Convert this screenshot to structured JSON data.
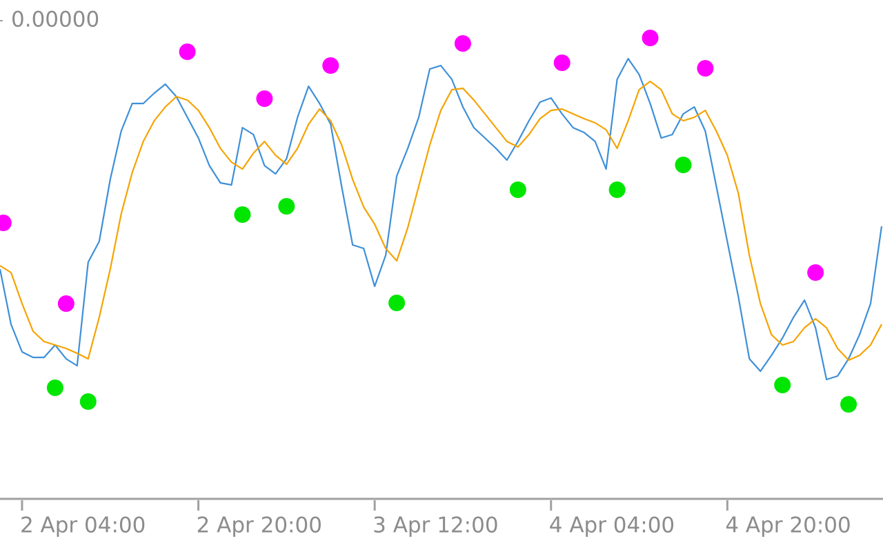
{
  "chart_data": {
    "type": "line",
    "xlim": [
      -2,
      78
    ],
    "xticks": [
      {
        "value": 0,
        "label": "2 Apr 04:00"
      },
      {
        "value": 16,
        "label": "2 Apr 20:00"
      },
      {
        "value": 32,
        "label": "3 Apr 12:00"
      },
      {
        "value": 48,
        "label": "4 Apr 04:00"
      },
      {
        "value": 64,
        "label": "4 Apr 20:00"
      }
    ],
    "ylim": [
      -692,
      0
    ],
    "yticks": [
      {
        "value": 0,
        "label": "0.00000"
      }
    ],
    "series": [
      {
        "type": "line",
        "color": "#3d8fd8",
        "x": [
          -2,
          -1,
          0,
          1,
          2,
          3,
          4,
          5,
          6,
          7,
          8,
          9,
          10,
          11,
          12,
          13,
          14,
          15,
          16,
          17,
          18,
          19,
          20,
          21,
          22,
          23,
          24,
          25,
          26,
          27,
          28,
          29,
          30,
          31,
          32,
          33,
          34,
          35,
          36,
          37,
          38,
          39,
          40,
          41,
          42,
          43,
          44,
          45,
          46,
          47,
          48,
          49,
          50,
          51,
          52,
          53,
          54,
          55,
          56,
          57,
          58,
          59,
          60,
          61,
          62,
          63,
          64,
          65,
          66,
          67,
          68,
          69,
          70,
          71,
          72,
          73,
          74,
          75,
          76,
          77,
          78
        ],
        "values": [
          -360,
          -440,
          -480,
          -488,
          -488,
          -470,
          -490,
          -500,
          -350,
          -320,
          -230,
          -160,
          -120,
          -120,
          -105,
          -92,
          -110,
          -140,
          -170,
          -210,
          -235,
          -238,
          -155,
          -165,
          -210,
          -222,
          -200,
          -140,
          -95,
          -120,
          -150,
          -240,
          -325,
          -330,
          -385,
          -340,
          -225,
          -185,
          -140,
          -70,
          -65,
          -85,
          -125,
          -155,
          -170,
          -185,
          -202,
          -175,
          -145,
          -118,
          -112,
          -135,
          -155,
          -162,
          -175,
          -215,
          -85,
          -55,
          -78,
          -120,
          -170,
          -165,
          -135,
          -125,
          -160,
          -240,
          -320,
          -400,
          -490,
          -508,
          -485,
          -460,
          -430,
          -405,
          -445,
          -520,
          -515,
          -490,
          -455,
          -410,
          -298
        ]
      },
      {
        "type": "line",
        "color": "#f5a300",
        "x": [
          -2,
          -1,
          0,
          1,
          2,
          3,
          4,
          5,
          6,
          7,
          8,
          9,
          10,
          11,
          12,
          13,
          14,
          15,
          16,
          17,
          18,
          19,
          20,
          21,
          22,
          23,
          24,
          25,
          26,
          27,
          28,
          29,
          30,
          31,
          32,
          33,
          34,
          35,
          36,
          37,
          38,
          39,
          40,
          41,
          42,
          43,
          44,
          45,
          46,
          47,
          48,
          49,
          50,
          51,
          52,
          53,
          54,
          55,
          56,
          57,
          58,
          59,
          60,
          61,
          62,
          63,
          64,
          65,
          66,
          67,
          68,
          69,
          70,
          71,
          72,
          73,
          74,
          75,
          76,
          77,
          78
        ],
        "values": [
          -355,
          -365,
          -410,
          -450,
          -465,
          -470,
          -475,
          -482,
          -490,
          -430,
          -360,
          -280,
          -220,
          -175,
          -145,
          -125,
          -110,
          -115,
          -130,
          -155,
          -185,
          -205,
          -215,
          -192,
          -175,
          -195,
          -208,
          -185,
          -150,
          -128,
          -145,
          -180,
          -230,
          -270,
          -295,
          -330,
          -348,
          -300,
          -240,
          -180,
          -130,
          -100,
          -98,
          -115,
          -135,
          -155,
          -175,
          -183,
          -165,
          -142,
          -130,
          -128,
          -135,
          -142,
          -148,
          -158,
          -185,
          -145,
          -100,
          -88,
          -100,
          -135,
          -145,
          -140,
          -130,
          -160,
          -195,
          -250,
          -340,
          -410,
          -455,
          -470,
          -465,
          -445,
          -432,
          -445,
          -475,
          -492,
          -485,
          -470,
          -440
        ]
      },
      {
        "type": "scatter",
        "color": "#ff00ff",
        "x": [
          -1.7,
          4,
          15,
          22,
          28,
          40,
          49,
          57,
          62,
          72
        ],
        "values": [
          -293,
          -410,
          -45,
          -113,
          -65,
          -33,
          -61,
          -25,
          -69,
          -365
        ]
      },
      {
        "type": "scatter",
        "color": "#00e600",
        "x": [
          3,
          6,
          20,
          24,
          34,
          45,
          54,
          60,
          69,
          75
        ],
        "values": [
          -532,
          -552,
          -281,
          -269,
          -409,
          -245,
          -245,
          -209,
          -528,
          -556
        ]
      }
    ]
  }
}
